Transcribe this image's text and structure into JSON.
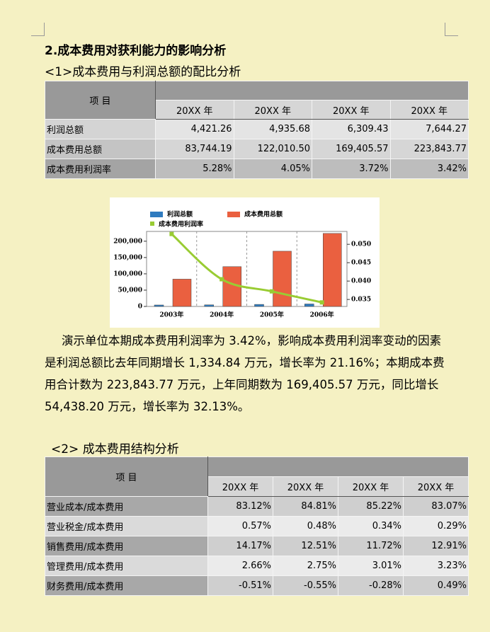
{
  "heading": "2.成本费用对获利能力的影响分析",
  "section1": {
    "title": "<1>成本费用与利润总额的配比分析",
    "table": {
      "header": "项 目",
      "columns": [
        "20XX 年",
        "20XX 年",
        "20XX 年",
        "20XX 年"
      ],
      "rows": [
        [
          "利润总额",
          "4,421.26",
          "4,935.68",
          "6,309.43",
          "7,644.27"
        ],
        [
          "成本费用总额",
          "83,744.19",
          "122,010.50",
          "169,405.57",
          "223,843.77"
        ],
        [
          "成本费用利润率",
          "5.28%",
          "4.05%",
          "3.72%",
          "3.42%"
        ]
      ]
    }
  },
  "chart_data": {
    "type": "bar",
    "categories": [
      "2003年",
      "2004年",
      "2005年",
      "2006年"
    ],
    "series": [
      {
        "name": "利润总额",
        "color": "#2f7bbf",
        "values": [
          4421.26,
          4935.68,
          6309.43,
          7644.27
        ]
      },
      {
        "name": "成本费用总额",
        "color": "#ea6040",
        "values": [
          83744.19,
          122010.5,
          169405.57,
          223843.77
        ]
      },
      {
        "name": "成本费用利润率",
        "color": "#99cc33",
        "type": "line",
        "axis": "y2",
        "values": [
          0.0528,
          0.0405,
          0.0372,
          0.0342
        ]
      }
    ],
    "ylim": [
      0,
      230000
    ],
    "yticks": [
      0,
      {
        "value": 50000,
        "label": "50,000"
      },
      {
        "value": 100000,
        "label": "100,000"
      },
      {
        "value": 150000,
        "label": "150,000"
      },
      {
        "value": 200000,
        "label": "200,000"
      }
    ],
    "y2lim": [
      0.0331,
      0.0535
    ],
    "y2ticks": [
      {
        "value": 0.035,
        "label": "0.035"
      },
      {
        "value": 0.04,
        "label": "0.040"
      },
      {
        "value": 0.045,
        "label": "0.045"
      },
      {
        "value": 0.05,
        "label": "0.050"
      }
    ],
    "grid": true,
    "legend": "top"
  },
  "paragraph": "演示单位本期成本费用利润率为 3.42%，影响成本费用利润率变动的因素是利润总额比去年同期增长 1,334.84 万元，增长率为 21.16%；本期成本费用合计数为 223,843.77 万元，上年同期数为 169,405.57 万元，同比增长 54,438.20 万元，增长率为 32.13%。",
  "section2": {
    "title": "<2> 成本费用结构分析",
    "table": {
      "header": "项 目",
      "columns": [
        "20XX 年",
        "20XX 年",
        "20XX 年",
        "20XX 年"
      ],
      "rows": [
        [
          "营业成本/成本费用",
          "83.12%",
          "84.81%",
          "85.22%",
          "83.07%"
        ],
        [
          "营业税金/成本费用",
          "0.57%",
          "0.48%",
          "0.34%",
          "0.29%"
        ],
        [
          "销售费用/成本费用",
          "14.17%",
          "12.51%",
          "11.72%",
          "12.91%"
        ],
        [
          "管理费用/成本费用",
          "2.66%",
          "2.75%",
          "3.01%",
          "3.23%"
        ],
        [
          "财务费用/成本费用",
          "-0.51%",
          "-0.55%",
          "-0.28%",
          "0.49%"
        ]
      ]
    }
  }
}
